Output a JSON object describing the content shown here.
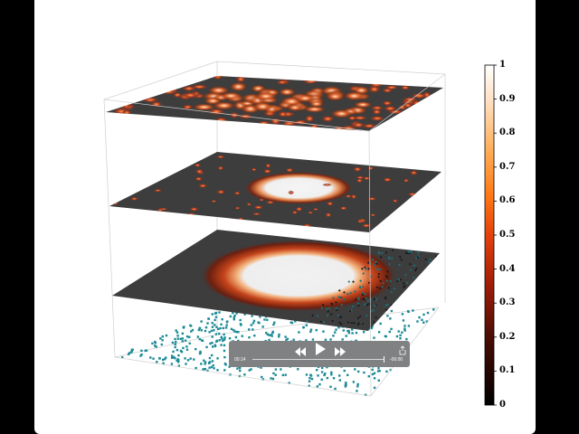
{
  "colorbar": {
    "ticks": [
      "0",
      "0.1",
      "0.2",
      "0.3",
      "0.4",
      "0.5",
      "0.6",
      "0.7",
      "0.8",
      "0.9",
      "1"
    ],
    "colormap": "gist_heat",
    "range": [
      0,
      1
    ]
  },
  "player": {
    "time_elapsed": "00:14",
    "time_remaining": "-00:00",
    "progress": 0.99,
    "icons": {
      "rewind": "rewind-icon",
      "play": "play-icon",
      "forward": "fast-forward-icon",
      "fullscreen": "fullscreen-icon"
    }
  },
  "colors": {
    "scatter_points": "#1b8a96",
    "plane_base": "#3d3d3d",
    "box_edges": "#cfcfcf",
    "controls_bg": "#7f8182"
  }
}
